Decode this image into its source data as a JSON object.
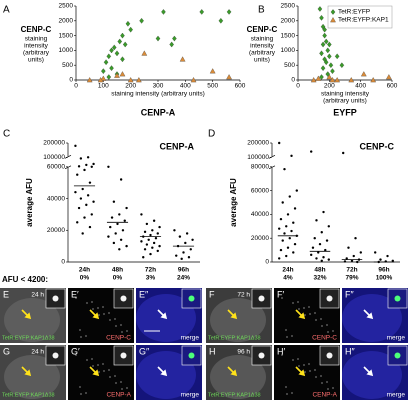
{
  "chart_data": [
    {
      "type": "scatter",
      "panel": "A",
      "title": "CENP-A",
      "ylabel_title": "CENP-C",
      "ylabel": [
        "staining",
        "intensity",
        "(arbitrary",
        "units)"
      ],
      "xlabel": [
        "staining intensity (arbitrary units)"
      ],
      "xlim": [
        0,
        600
      ],
      "xticks": [
        0,
        100,
        200,
        300,
        400,
        500,
        600
      ],
      "ylim": [
        0,
        2500
      ],
      "yticks": [
        0,
        500,
        1000,
        1500,
        2000,
        2500
      ],
      "legend": false,
      "series": [
        {
          "color": "#3a9a2a",
          "marker": "diamond",
          "x": [
            100,
            110,
            120,
            130,
            140,
            150,
            160,
            170,
            180,
            190,
            200,
            240,
            300,
            320,
            350,
            360,
            460,
            530,
            560,
            130,
            150,
            170,
            120
          ],
          "values": [
            300,
            600,
            800,
            1000,
            1100,
            900,
            1300,
            1500,
            1200,
            1900,
            1700,
            2000,
            1400,
            2300,
            1200,
            1400,
            2300,
            2000,
            2300,
            400,
            200,
            700,
            100
          ]
        },
        {
          "color": "#d98c3a",
          "marker": "triangle",
          "x": [
            100,
            150,
            170,
            200,
            250,
            390,
            500,
            90,
            50,
            230,
            560,
            430
          ],
          "values": [
            50,
            150,
            200,
            0,
            900,
            700,
            300,
            0,
            0,
            0,
            100,
            0
          ]
        }
      ]
    },
    {
      "type": "scatter",
      "panel": "B",
      "title": "EYFP",
      "ylabel_title": "CENP-C",
      "ylabel": [
        "staining",
        "intensity",
        "(arbitrary",
        "units)"
      ],
      "xlabel": [
        "staining intensity",
        "(arbitrary units)"
      ],
      "xlim": [
        0,
        600
      ],
      "xticks": [
        0,
        200,
        400,
        600
      ],
      "ylim": [
        0,
        2500
      ],
      "yticks": [
        0,
        500,
        1000,
        1500,
        2000,
        2500
      ],
      "legend": "upper right",
      "series": [
        {
          "name": "TetR:EYFP",
          "color": "#3a9a2a",
          "marker": "diamond",
          "x": [
            140,
            150,
            160,
            170,
            180,
            160,
            190,
            150,
            200,
            170,
            180,
            210,
            160,
            220,
            190,
            150,
            250,
            280,
            170,
            200
          ],
          "values": [
            2400,
            2100,
            1800,
            1500,
            1300,
            1200,
            1000,
            900,
            800,
            700,
            600,
            500,
            400,
            300,
            200,
            100,
            800,
            500,
            1700,
            1200
          ]
        },
        {
          "name": "TetR:EYFP:KAP1",
          "color": "#d98c3a",
          "marker": "triangle",
          "x": [
            100,
            130,
            200,
            220,
            250,
            340,
            420,
            580,
            480
          ],
          "values": [
            0,
            50,
            100,
            0,
            0,
            0,
            200,
            100,
            0
          ]
        }
      ]
    },
    {
      "type": "dot",
      "panel": "C",
      "title": "CENP-A",
      "ylabel": "average AFU",
      "ylim": [
        0,
        200000
      ],
      "axis_break": [
        60000,
        100000
      ],
      "yticks": [
        0,
        20000,
        40000,
        60000,
        100000,
        200000
      ],
      "categories": [
        "24h",
        "48h",
        "72h",
        "96h"
      ],
      "threshold_title": "AFU < 4200:",
      "threshold_labels": [
        "0%",
        "0%",
        "3%",
        "24%"
      ],
      "medians": [
        48000,
        25000,
        16000,
        10000
      ],
      "values": [
        [
          180000,
          100000,
          95000,
          72000,
          68000,
          62000,
          60000,
          58000,
          55000,
          50000,
          46000,
          44000,
          42000,
          40000,
          38000,
          36000,
          34000,
          30000,
          28000,
          25000,
          22000,
          18000
        ],
        [
          60000,
          52000,
          38000,
          34000,
          30000,
          28000,
          26000,
          24000,
          22000,
          20000,
          18000,
          16000,
          14000,
          12000,
          10000,
          8000
        ],
        [
          30000,
          26000,
          24000,
          22000,
          20000,
          19000,
          18000,
          17000,
          16000,
          15000,
          14000,
          13000,
          12000,
          11000,
          10000,
          9000,
          8000,
          7000,
          5000,
          3000
        ],
        [
          20000,
          18000,
          16000,
          14000,
          12000,
          10000,
          8000,
          6000,
          4000,
          3000,
          2000
        ]
      ]
    },
    {
      "type": "dot",
      "panel": "D",
      "title": "CENP-C",
      "ylabel": "average AFU",
      "ylim": [
        0,
        200000
      ],
      "axis_break": [
        80000,
        100000
      ],
      "yticks": [
        0,
        20000,
        40000,
        60000,
        80000,
        100000,
        200000
      ],
      "categories": [
        "24h",
        "48h",
        "72h",
        "96h"
      ],
      "threshold_labels": [
        "4%",
        "32%",
        "79%",
        "100%"
      ],
      "medians": [
        22000,
        9000,
        2000,
        0
      ],
      "values": [
        [
          200000,
          110000,
          78000,
          60000,
          55000,
          50000,
          45000,
          40000,
          36000,
          33000,
          30000,
          28000,
          26000,
          24000,
          22000,
          20000,
          18000,
          15000,
          12000,
          10000,
          8000,
          5000,
          3000
        ],
        [
          140000,
          42000,
          35000,
          30000,
          25000,
          20000,
          18000,
          15000,
          12000,
          10000,
          8000,
          6000,
          4000,
          3000,
          2000,
          1000
        ],
        [
          130000,
          20000,
          12000,
          8000,
          5000,
          3000,
          2000,
          1000,
          500,
          0
        ],
        [
          8000,
          5000,
          2000,
          1000,
          500,
          0
        ]
      ]
    }
  ],
  "image_panels": [
    {
      "letter": "E",
      "time": "24 h",
      "caption": "TetR:EYFP:KAP1Δ38",
      "caption_color": "#6fdc5a",
      "background": "#4a4a4a"
    },
    {
      "letter": "E′",
      "caption": "CENP-C",
      "caption_color": "#ff6f6f",
      "background": "#050505"
    },
    {
      "letter": "E″",
      "caption": "merge",
      "caption_color": "#ffffff",
      "background": "#14147a"
    },
    {
      "letter": "F",
      "time": "72 h",
      "caption": "TetR:EYFP:KAP1Δ38",
      "caption_color": "#6fdc5a",
      "background": "#3c3c3c"
    },
    {
      "letter": "F′",
      "caption": "CENP-C",
      "caption_color": "#ff6f6f",
      "background": "#050505"
    },
    {
      "letter": "F″",
      "caption": "merge",
      "caption_color": "#ffffff",
      "background": "#14147a"
    },
    {
      "letter": "G",
      "time": "24 h",
      "caption": "TetR:EYFP:KAP1Δ38",
      "caption_color": "#6fdc5a",
      "background": "#444444"
    },
    {
      "letter": "G′",
      "caption": "CENP-A",
      "caption_color": "#ff6f6f",
      "background": "#050505"
    },
    {
      "letter": "G″",
      "caption": "merge",
      "caption_color": "#ffffff",
      "background": "#14147a"
    },
    {
      "letter": "H",
      "time": "96 h",
      "caption": "TetR:EYFP:KAP1Δ38",
      "caption_color": "#6fdc5a",
      "background": "#3a3a3a"
    },
    {
      "letter": "H′",
      "caption": "CENP-A",
      "caption_color": "#ff6f6f",
      "background": "#050505"
    },
    {
      "letter": "H″",
      "caption": "merge",
      "caption_color": "#ffffff",
      "background": "#14147a"
    }
  ]
}
